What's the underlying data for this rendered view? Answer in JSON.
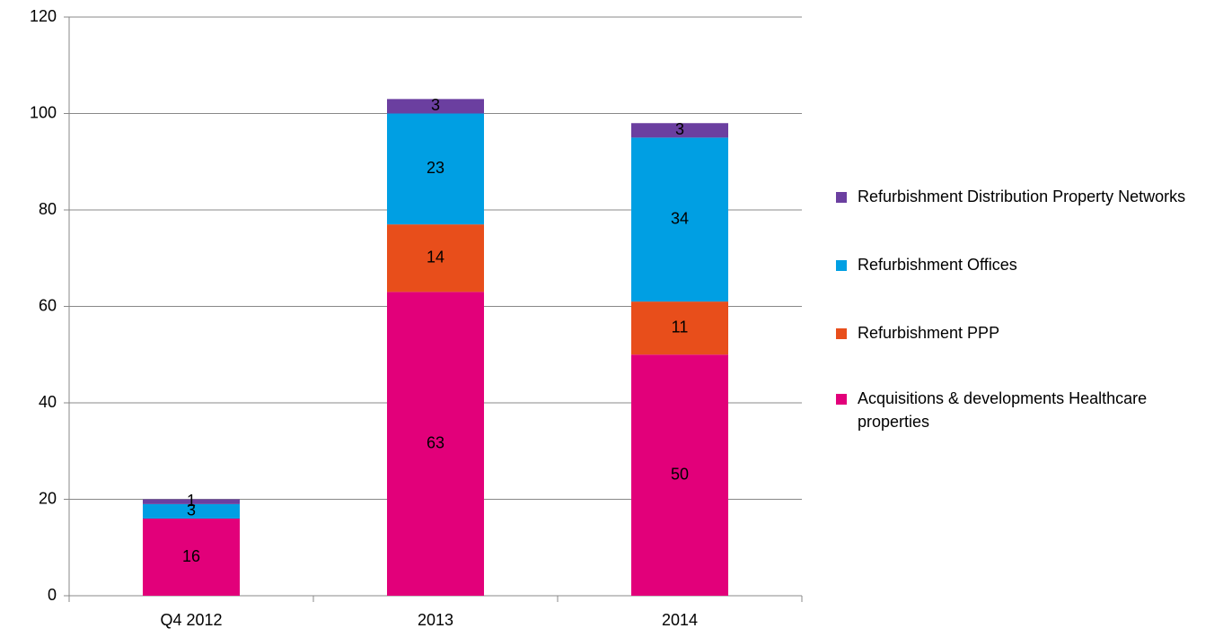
{
  "chart_data": {
    "type": "stacked_bar",
    "categories": [
      "Q4 2012",
      "2013",
      "2014"
    ],
    "series": [
      {
        "name": "Acquisitions & developments Healthcare properties",
        "color": "#e2007a",
        "values": [
          16,
          63,
          50
        ]
      },
      {
        "name": "Refurbishment PPP",
        "color": "#e84e1b",
        "values": [
          0,
          14,
          11
        ]
      },
      {
        "name": "Refurbishment Offices",
        "color": "#009fe3",
        "values": [
          3,
          23,
          34
        ]
      },
      {
        "name": "Refurbishment Distribution Property Networks",
        "color": "#6b3fa0",
        "values": [
          1,
          3,
          3
        ]
      }
    ],
    "ylim": [
      0,
      120
    ],
    "yticks": [
      0,
      20,
      40,
      60,
      80,
      100,
      120
    ],
    "grid": true,
    "legend": "right"
  }
}
